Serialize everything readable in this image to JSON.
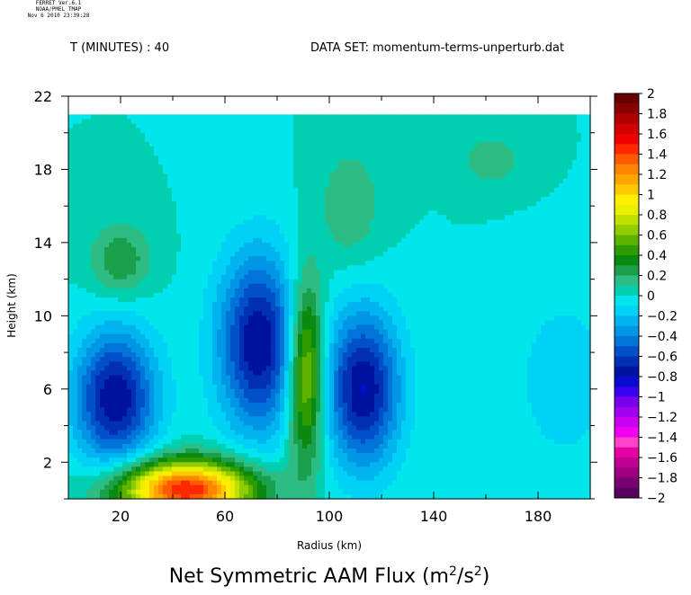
{
  "stamp": {
    "line1": "FERRET Ver.6.1",
    "line2": "NOAA/PMEL TMAP",
    "line3": "Nov  6 2010 23:39:28"
  },
  "header": {
    "time_label": "T (MINUTES) : 40",
    "dataset_label": "DATA SET: momentum-terms-unperturb.dat"
  },
  "chart_data": {
    "type": "heatmap",
    "title": "Net Symmetric AAM Flux (m",
    "title_sup1": "2",
    "title_mid": "/s",
    "title_sup2": "2",
    "title_end": ")",
    "xlabel": "Radius (km)",
    "ylabel": "Height (km)",
    "xlim": [
      0,
      200
    ],
    "ylim": [
      0,
      22
    ],
    "data_ylim": [
      0,
      21
    ],
    "x_ticks": [
      20,
      60,
      100,
      140,
      180
    ],
    "x_tick_labels": [
      "20",
      "60",
      "100",
      "140",
      "180"
    ],
    "y_ticks": [
      2,
      6,
      10,
      14,
      18,
      22
    ],
    "y_tick_labels": [
      "2",
      "6",
      "10",
      "14",
      "18",
      "22"
    ],
    "colorbar": {
      "min": -2,
      "max": 2,
      "step": 0.1,
      "labels": [
        "2",
        "1.8",
        "1.6",
        "1.4",
        "1.2",
        "1",
        "0.8",
        "0.6",
        "0.4",
        "0.2",
        "0",
        "−0.2",
        "−0.4",
        "−0.6",
        "−0.8",
        "−1",
        "−1.2",
        "−1.4",
        "−1.6",
        "−1.8",
        "−2"
      ],
      "label_values": [
        2,
        1.8,
        1.6,
        1.4,
        1.2,
        1,
        0.8,
        0.6,
        0.4,
        0.2,
        0,
        -0.2,
        -0.4,
        -0.6,
        -0.8,
        -1,
        -1.2,
        -1.4,
        -1.6,
        -1.8,
        -2
      ],
      "colors_top_to_bottom": [
        "#680000",
        "#8b0000",
        "#b00000",
        "#d40000",
        "#f00000",
        "#ff2800",
        "#ff5a00",
        "#ff8400",
        "#ffa500",
        "#ffc800",
        "#ffee00",
        "#e8f000",
        "#c0e000",
        "#90cc00",
        "#5cb400",
        "#2e9c00",
        "#0a8a10",
        "#1aa04a",
        "#2cbc84",
        "#00d0b0",
        "#00e6ec",
        "#00d2f6",
        "#00b4f0",
        "#0096e6",
        "#0074d8",
        "#0050c8",
        "#0030b4",
        "#0012a0",
        "#0a0ad2",
        "#3a00f0",
        "#7800ee",
        "#a000ee",
        "#c800f0",
        "#f000f0",
        "#ff40c8",
        "#e600a4",
        "#c00090",
        "#9c0080",
        "#780070",
        "#580060"
      ]
    },
    "field_features": [
      {
        "kind": "min",
        "x": 18,
        "y": 5.5,
        "value": -0.8
      },
      {
        "kind": "min",
        "x": 73,
        "y": 8.5,
        "value": -0.8
      },
      {
        "kind": "min",
        "x": 113,
        "y": 6.0,
        "value": -0.8
      },
      {
        "kind": "min",
        "x": 190,
        "y": 6.5,
        "value": -0.2
      },
      {
        "kind": "max",
        "x": 45,
        "y": 0.5,
        "value": 1.5
      },
      {
        "kind": "max",
        "x": 91,
        "y": 7.0,
        "value": 0.8
      },
      {
        "kind": "max",
        "x": 20,
        "y": 13.0,
        "value": 0.3
      },
      {
        "kind": "max",
        "x": 162,
        "y": 18.5,
        "value": 0.2
      },
      {
        "kind": "max",
        "x": 108,
        "y": 16.0,
        "value": 0.2
      }
    ]
  }
}
